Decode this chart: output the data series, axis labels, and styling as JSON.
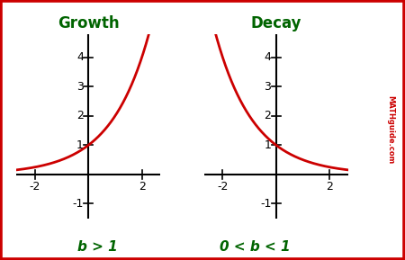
{
  "title_growth": "Growth",
  "title_decay": "Decay",
  "label_growth": "b > 1",
  "label_decay": "0 < b < 1",
  "title_color": "#006400",
  "label_color": "#006400",
  "watermark": "MATHguide.com",
  "watermark_color": "#cc0000",
  "curve_color": "#cc0000",
  "bg_color": "#ffffff",
  "border_color": "#cc0000",
  "xlim": [
    -2.7,
    2.7
  ],
  "ylim": [
    -1.5,
    4.8
  ],
  "xticks": [
    -2,
    2
  ],
  "yticks": [
    -1,
    1,
    2,
    3,
    4
  ],
  "growth_base": 2.0,
  "decay_base": 0.5,
  "title_fontsize": 12,
  "label_fontsize": 11,
  "tick_fontsize": 9,
  "curve_linewidth": 2.0
}
